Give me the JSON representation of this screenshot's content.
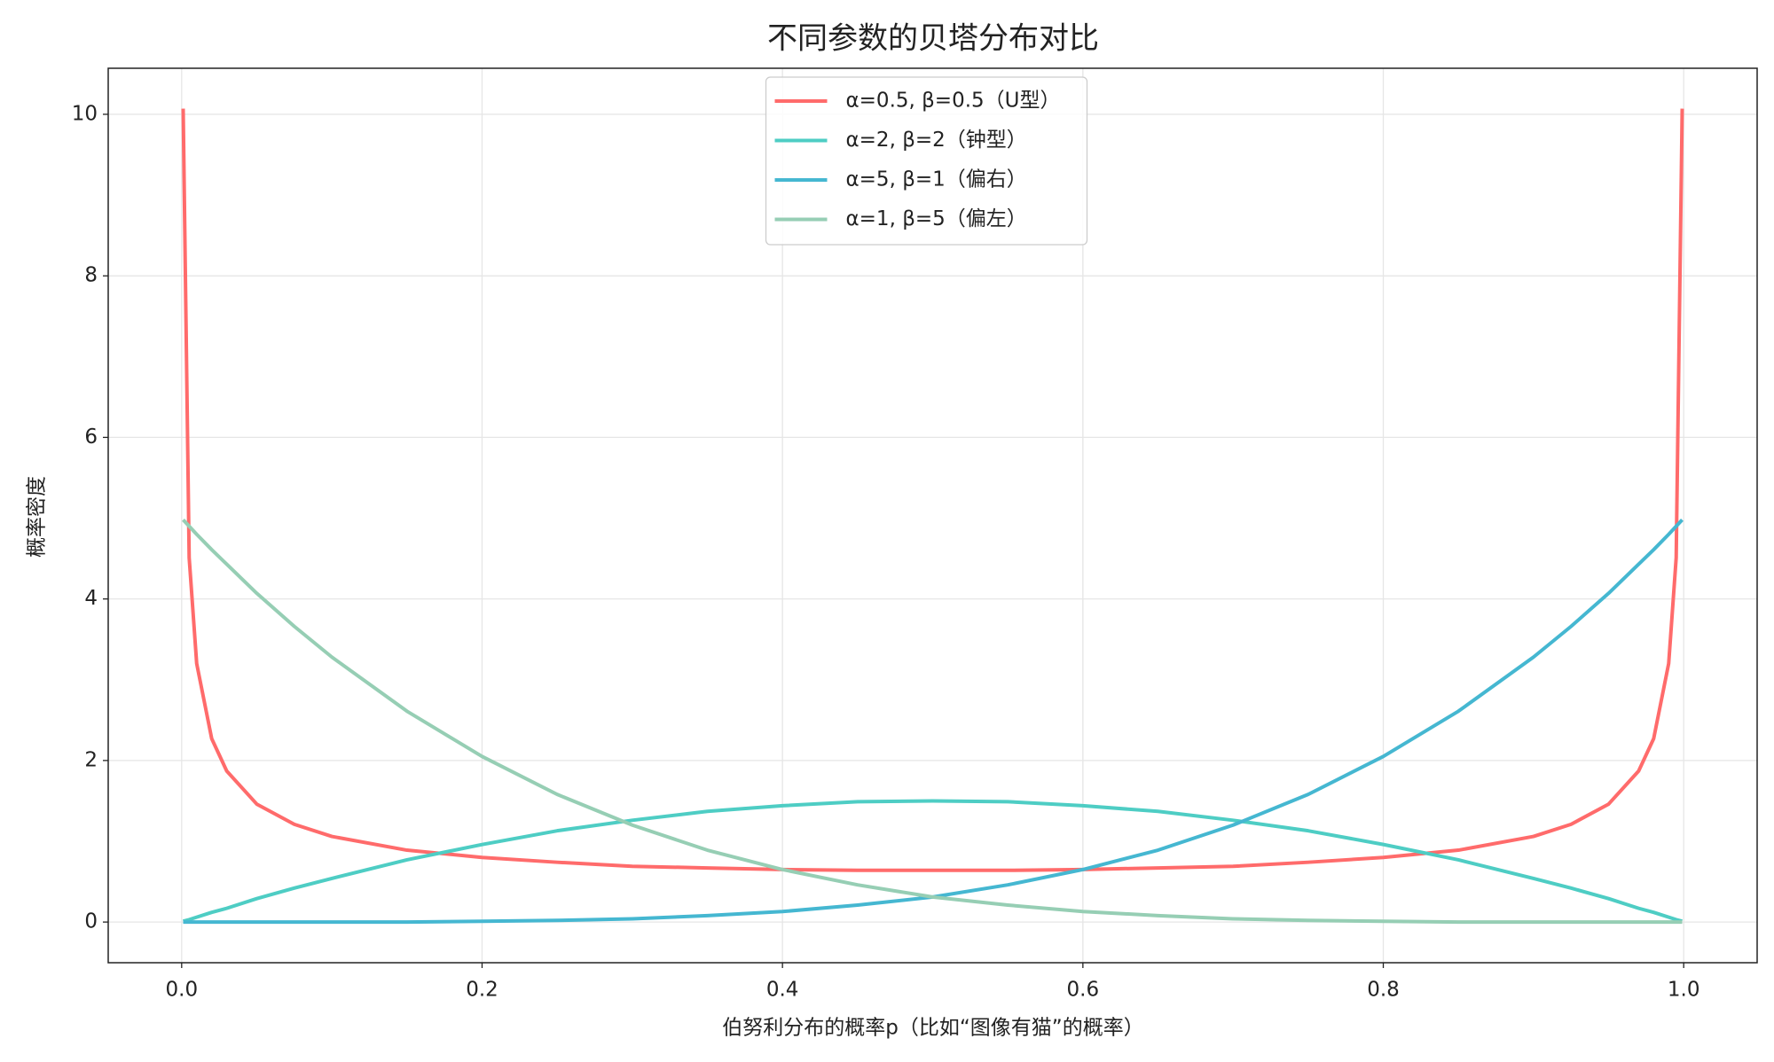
{
  "chart_data": {
    "type": "line",
    "title": "不同参数的贝塔分布对比",
    "x_label": "伯努利分布的概率p（比如“图像有猫”的概率）",
    "y_label": "概率密度",
    "x": [
      0.001,
      0.005,
      0.01,
      0.02,
      0.03,
      0.05,
      0.075,
      0.1,
      0.15,
      0.2,
      0.25,
      0.3,
      0.35,
      0.4,
      0.45,
      0.5,
      0.55,
      0.6,
      0.65,
      0.7,
      0.75,
      0.8,
      0.85,
      0.9,
      0.925,
      0.95,
      0.97,
      0.98,
      0.99,
      0.995,
      0.999
    ],
    "series": [
      {
        "name": "α=0.5, β=0.5（U型）",
        "color": "#ff6b6b",
        "values": [
          10.07,
          4.51,
          3.2,
          2.27,
          1.87,
          1.46,
          1.21,
          1.06,
          0.89,
          0.8,
          0.74,
          0.69,
          0.67,
          0.65,
          0.64,
          0.64,
          0.64,
          0.65,
          0.67,
          0.69,
          0.74,
          0.8,
          0.89,
          1.06,
          1.21,
          1.46,
          1.87,
          2.27,
          3.2,
          4.51,
          10.07
        ]
      },
      {
        "name": "α=2, β=2（钟型）",
        "color": "#4ecdc4",
        "values": [
          0.01,
          0.03,
          0.06,
          0.12,
          0.17,
          0.29,
          0.42,
          0.54,
          0.77,
          0.96,
          1.13,
          1.26,
          1.37,
          1.44,
          1.49,
          1.5,
          1.49,
          1.44,
          1.37,
          1.26,
          1.13,
          0.96,
          0.77,
          0.54,
          0.42,
          0.29,
          0.17,
          0.12,
          0.06,
          0.03,
          0.01
        ]
      },
      {
        "name": "α=5, β=1（偏右）",
        "color": "#45b7d1",
        "values": [
          0,
          0,
          0,
          0,
          0,
          0,
          0,
          0,
          0,
          0.01,
          0.02,
          0.04,
          0.08,
          0.13,
          0.21,
          0.31,
          0.46,
          0.65,
          0.89,
          1.2,
          1.58,
          2.05,
          2.61,
          3.28,
          3.66,
          4.07,
          4.43,
          4.61,
          4.8,
          4.9,
          4.98
        ]
      },
      {
        "name": "α=1, β=5（偏左）",
        "color": "#96ceb4",
        "values": [
          4.98,
          4.9,
          4.8,
          4.61,
          4.43,
          4.07,
          3.66,
          3.28,
          2.61,
          2.05,
          1.58,
          1.2,
          0.89,
          0.65,
          0.46,
          0.31,
          0.21,
          0.13,
          0.08,
          0.04,
          0.02,
          0.01,
          0,
          0,
          0,
          0,
          0,
          0,
          0,
          0,
          0
        ]
      }
    ],
    "xlim": [
      -0.0489,
      1.0489
    ],
    "xticks": [
      {
        "value": 0,
        "label": "0.0"
      },
      0.2,
      0.4,
      0.6,
      0.8,
      {
        "value": 1,
        "label": "1.0"
      }
    ],
    "ylim": [
      -0.5035,
      10.57
    ],
    "yticks": [
      0,
      2,
      4,
      6,
      8,
      10
    ],
    "grid": true,
    "legend": "upper center"
  }
}
